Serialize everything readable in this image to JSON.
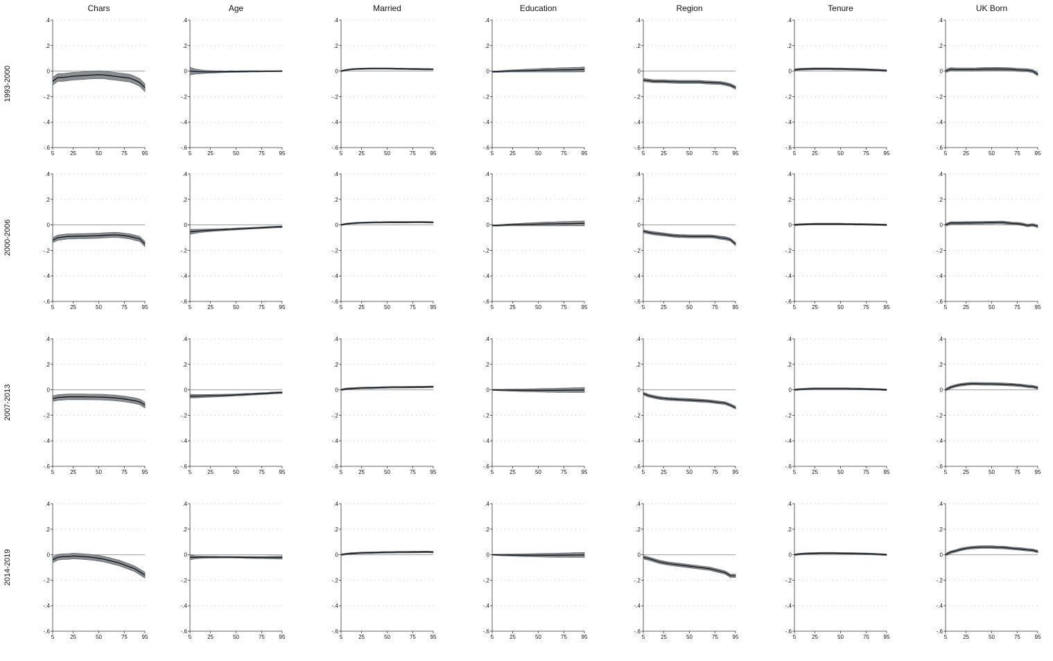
{
  "chart_data": {
    "type": "line",
    "layout": "grid",
    "columns": [
      "Chars",
      "Age",
      "Married",
      "Education",
      "Region",
      "Tenure",
      "UK Born"
    ],
    "rows": [
      "1993-2000",
      "2000-2006",
      "2007-2013",
      "2014-2019"
    ],
    "x": [
      5,
      10,
      15,
      20,
      25,
      30,
      35,
      40,
      45,
      50,
      55,
      60,
      65,
      70,
      75,
      80,
      85,
      90,
      95
    ],
    "xticks": [
      5,
      25,
      50,
      75,
      95
    ],
    "yticks": [
      0.4,
      0.2,
      0,
      -0.2,
      -0.4,
      -0.6
    ],
    "ytick_labels": [
      ".4",
      ".2",
      "0",
      "-.2",
      "-.4",
      "-.6"
    ],
    "ylim": [
      -0.6,
      0.4
    ],
    "xlim": [
      5,
      95
    ],
    "grid": true,
    "panels": [
      [
        {
          "y": [
            -0.08,
            -0.05,
            -0.05,
            -0.045,
            -0.04,
            -0.038,
            -0.035,
            -0.032,
            -0.03,
            -0.028,
            -0.03,
            -0.035,
            -0.04,
            -0.045,
            -0.05,
            -0.055,
            -0.07,
            -0.09,
            -0.13
          ],
          "hw": 0.03
        },
        {
          "y": [
            0.0,
            -0.003,
            -0.005,
            -0.006,
            -0.006,
            -0.006,
            -0.005,
            -0.005,
            -0.004,
            -0.004,
            -0.003,
            -0.003,
            -0.002,
            -0.002,
            -0.002,
            -0.001,
            -0.001,
            -0.001,
            0.0
          ],
          "hw": [
            0.03,
            0.02,
            0.015,
            0.012,
            0.01,
            0.008,
            0.007,
            0.006,
            0.006,
            0.005,
            0.005,
            0.005,
            0.005,
            0.005,
            0.004,
            0.004,
            0.004,
            0.004,
            0.004
          ]
        },
        {
          "y": [
            0.0,
            0.008,
            0.014,
            0.017,
            0.018,
            0.019,
            0.02,
            0.02,
            0.02,
            0.02,
            0.019,
            0.018,
            0.018,
            0.017,
            0.016,
            0.016,
            0.015,
            0.015,
            0.014
          ],
          "hw": 0.005
        },
        {
          "y": [
            -0.005,
            -0.004,
            -0.002,
            0.0,
            0.001,
            0.002,
            0.003,
            0.004,
            0.005,
            0.006,
            0.007,
            0.008,
            0.008,
            0.009,
            0.01,
            0.01,
            0.011,
            0.012,
            0.013
          ],
          "hw": [
            0.004,
            0.005,
            0.006,
            0.007,
            0.008,
            0.009,
            0.01,
            0.011,
            0.012,
            0.013,
            0.014,
            0.015,
            0.015,
            0.016,
            0.016,
            0.017,
            0.018,
            0.018,
            0.019
          ]
        },
        {
          "y": [
            -0.07,
            -0.075,
            -0.08,
            -0.08,
            -0.08,
            -0.082,
            -0.083,
            -0.085,
            -0.085,
            -0.085,
            -0.085,
            -0.085,
            -0.088,
            -0.09,
            -0.092,
            -0.093,
            -0.1,
            -0.11,
            -0.13
          ],
          "hw": 0.012
        },
        {
          "y": [
            0.01,
            0.014,
            0.016,
            0.017,
            0.018,
            0.018,
            0.018,
            0.018,
            0.017,
            0.017,
            0.016,
            0.015,
            0.014,
            0.013,
            0.012,
            0.01,
            0.008,
            0.006,
            0.004
          ],
          "hw": 0.007
        },
        {
          "y": [
            0.0,
            0.015,
            0.012,
            0.012,
            0.012,
            0.012,
            0.013,
            0.015,
            0.016,
            0.016,
            0.017,
            0.016,
            0.015,
            0.013,
            0.01,
            0.008,
            0.007,
            0.0,
            -0.025
          ],
          "hw": 0.012
        }
      ],
      [
        {
          "y": [
            -0.12,
            -0.1,
            -0.095,
            -0.09,
            -0.09,
            -0.088,
            -0.088,
            -0.087,
            -0.086,
            -0.085,
            -0.082,
            -0.08,
            -0.078,
            -0.08,
            -0.085,
            -0.09,
            -0.1,
            -0.11,
            -0.15
          ],
          "hw": 0.02
        },
        {
          "y": [
            -0.055,
            -0.05,
            -0.047,
            -0.044,
            -0.042,
            -0.04,
            -0.038,
            -0.036,
            -0.034,
            -0.032,
            -0.03,
            -0.028,
            -0.026,
            -0.024,
            -0.022,
            -0.02,
            -0.018,
            -0.016,
            -0.015
          ],
          "hw": [
            0.02,
            0.016,
            0.013,
            0.011,
            0.01,
            0.009,
            0.008,
            0.008,
            0.007,
            0.007,
            0.007,
            0.006,
            0.006,
            0.006,
            0.006,
            0.006,
            0.006,
            0.006,
            0.006
          ]
        },
        {
          "y": [
            0.0,
            0.008,
            0.012,
            0.015,
            0.017,
            0.018,
            0.019,
            0.02,
            0.02,
            0.021,
            0.021,
            0.021,
            0.021,
            0.021,
            0.022,
            0.022,
            0.022,
            0.021,
            0.02
          ],
          "hw": 0.005
        },
        {
          "y": [
            -0.005,
            -0.004,
            -0.002,
            0.0,
            0.001,
            0.002,
            0.003,
            0.004,
            0.005,
            0.006,
            0.007,
            0.008,
            0.008,
            0.009,
            0.01,
            0.01,
            0.011,
            0.012,
            0.012
          ],
          "hw": [
            0.004,
            0.005,
            0.006,
            0.007,
            0.008,
            0.009,
            0.01,
            0.011,
            0.012,
            0.013,
            0.014,
            0.015,
            0.015,
            0.016,
            0.016,
            0.017,
            0.018,
            0.018,
            0.019
          ]
        },
        {
          "y": [
            -0.05,
            -0.058,
            -0.065,
            -0.07,
            -0.075,
            -0.08,
            -0.085,
            -0.087,
            -0.088,
            -0.09,
            -0.09,
            -0.09,
            -0.09,
            -0.09,
            -0.093,
            -0.1,
            -0.105,
            -0.115,
            -0.15
          ],
          "hw": 0.012
        },
        {
          "y": [
            0.0,
            0.003,
            0.005,
            0.006,
            0.007,
            0.007,
            0.007,
            0.007,
            0.007,
            0.007,
            0.006,
            0.006,
            0.005,
            0.005,
            0.004,
            0.003,
            0.002,
            0.001,
            0.0
          ],
          "hw": 0.006
        },
        {
          "y": [
            0.0,
            0.015,
            0.015,
            0.015,
            0.016,
            0.016,
            0.017,
            0.017,
            0.018,
            0.018,
            0.019,
            0.02,
            0.016,
            0.012,
            0.01,
            0.005,
            -0.005,
            0.0,
            -0.01
          ],
          "hw": 0.01
        }
      ],
      [
        {
          "y": [
            -0.07,
            -0.06,
            -0.058,
            -0.055,
            -0.055,
            -0.055,
            -0.055,
            -0.056,
            -0.056,
            -0.057,
            -0.058,
            -0.06,
            -0.063,
            -0.067,
            -0.072,
            -0.078,
            -0.085,
            -0.095,
            -0.12
          ],
          "hw": 0.022
        },
        {
          "y": [
            -0.05,
            -0.05,
            -0.049,
            -0.048,
            -0.047,
            -0.046,
            -0.045,
            -0.043,
            -0.042,
            -0.04,
            -0.038,
            -0.036,
            -0.034,
            -0.032,
            -0.03,
            -0.028,
            -0.025,
            -0.023,
            -0.022
          ],
          "hw": [
            0.014,
            0.013,
            0.012,
            0.011,
            0.01,
            0.01,
            0.009,
            0.009,
            0.008,
            0.008,
            0.008,
            0.008,
            0.007,
            0.007,
            0.007,
            0.007,
            0.007,
            0.007,
            0.007
          ]
        },
        {
          "y": [
            0.0,
            0.007,
            0.01,
            0.012,
            0.014,
            0.015,
            0.016,
            0.017,
            0.018,
            0.019,
            0.02,
            0.02,
            0.02,
            0.021,
            0.021,
            0.022,
            0.022,
            0.023,
            0.024
          ],
          "hw": 0.006
        },
        {
          "y": [
            0.0,
            -0.001,
            -0.002,
            -0.002,
            -0.003,
            -0.003,
            -0.004,
            -0.004,
            -0.004,
            -0.004,
            -0.004,
            -0.004,
            -0.004,
            -0.004,
            -0.003,
            -0.003,
            -0.002,
            -0.002,
            -0.001
          ],
          "hw": [
            0.004,
            0.005,
            0.006,
            0.007,
            0.008,
            0.009,
            0.01,
            0.011,
            0.012,
            0.013,
            0.014,
            0.015,
            0.015,
            0.016,
            0.016,
            0.017,
            0.018,
            0.018,
            0.019
          ]
        },
        {
          "y": [
            -0.03,
            -0.045,
            -0.055,
            -0.063,
            -0.068,
            -0.072,
            -0.074,
            -0.076,
            -0.078,
            -0.08,
            -0.082,
            -0.085,
            -0.087,
            -0.09,
            -0.095,
            -0.1,
            -0.105,
            -0.12,
            -0.14
          ],
          "hw": 0.011
        },
        {
          "y": [
            0.0,
            0.004,
            0.006,
            0.008,
            0.009,
            0.009,
            0.009,
            0.009,
            0.009,
            0.009,
            0.009,
            0.008,
            0.008,
            0.007,
            0.006,
            0.005,
            0.004,
            0.002,
            0.0
          ],
          "hw": 0.006
        },
        {
          "y": [
            0.0,
            0.02,
            0.032,
            0.04,
            0.045,
            0.048,
            0.048,
            0.047,
            0.046,
            0.046,
            0.045,
            0.044,
            0.042,
            0.04,
            0.037,
            0.033,
            0.028,
            0.025,
            0.015
          ],
          "hw": 0.01
        }
      ],
      [
        {
          "y": [
            -0.04,
            -0.02,
            -0.015,
            -0.015,
            -0.01,
            -0.012,
            -0.015,
            -0.018,
            -0.022,
            -0.028,
            -0.035,
            -0.045,
            -0.055,
            -0.065,
            -0.08,
            -0.095,
            -0.11,
            -0.135,
            -0.16
          ],
          "hw": 0.022
        },
        {
          "y": [
            -0.02,
            -0.02,
            -0.019,
            -0.019,
            -0.019,
            -0.019,
            -0.019,
            -0.019,
            -0.019,
            -0.02,
            -0.02,
            -0.021,
            -0.021,
            -0.022,
            -0.022,
            -0.022,
            -0.022,
            -0.022,
            -0.022
          ],
          "hw": [
            0.02,
            0.012,
            0.009,
            0.008,
            0.007,
            0.007,
            0.006,
            0.006,
            0.006,
            0.006,
            0.006,
            0.007,
            0.007,
            0.008,
            0.008,
            0.009,
            0.01,
            0.011,
            0.012
          ]
        },
        {
          "y": [
            0.0,
            0.006,
            0.01,
            0.012,
            0.014,
            0.015,
            0.016,
            0.017,
            0.018,
            0.019,
            0.019,
            0.02,
            0.02,
            0.02,
            0.021,
            0.021,
            0.022,
            0.022,
            0.02
          ],
          "hw": 0.006
        },
        {
          "y": [
            0.0,
            -0.001,
            -0.002,
            -0.002,
            -0.003,
            -0.003,
            -0.004,
            -0.004,
            -0.004,
            -0.004,
            -0.004,
            -0.004,
            -0.004,
            -0.004,
            -0.003,
            -0.003,
            -0.002,
            -0.002,
            -0.001
          ],
          "hw": [
            0.004,
            0.005,
            0.006,
            0.007,
            0.008,
            0.009,
            0.01,
            0.011,
            0.012,
            0.013,
            0.014,
            0.015,
            0.015,
            0.016,
            0.016,
            0.017,
            0.018,
            0.018,
            0.019
          ]
        },
        {
          "y": [
            -0.02,
            -0.03,
            -0.042,
            -0.055,
            -0.063,
            -0.07,
            -0.075,
            -0.08,
            -0.085,
            -0.09,
            -0.095,
            -0.1,
            -0.105,
            -0.11,
            -0.12,
            -0.13,
            -0.14,
            -0.165,
            -0.165
          ],
          "hw": 0.013
        },
        {
          "y": [
            0.0,
            0.005,
            0.008,
            0.01,
            0.011,
            0.012,
            0.012,
            0.012,
            0.012,
            0.011,
            0.011,
            0.01,
            0.009,
            0.008,
            0.007,
            0.006,
            0.004,
            0.002,
            0.0
          ],
          "hw": 0.006
        },
        {
          "y": [
            0.0,
            0.02,
            0.03,
            0.042,
            0.05,
            0.055,
            0.058,
            0.06,
            0.06,
            0.06,
            0.058,
            0.057,
            0.054,
            0.05,
            0.047,
            0.043,
            0.038,
            0.035,
            0.025
          ],
          "hw": 0.01
        }
      ]
    ]
  }
}
